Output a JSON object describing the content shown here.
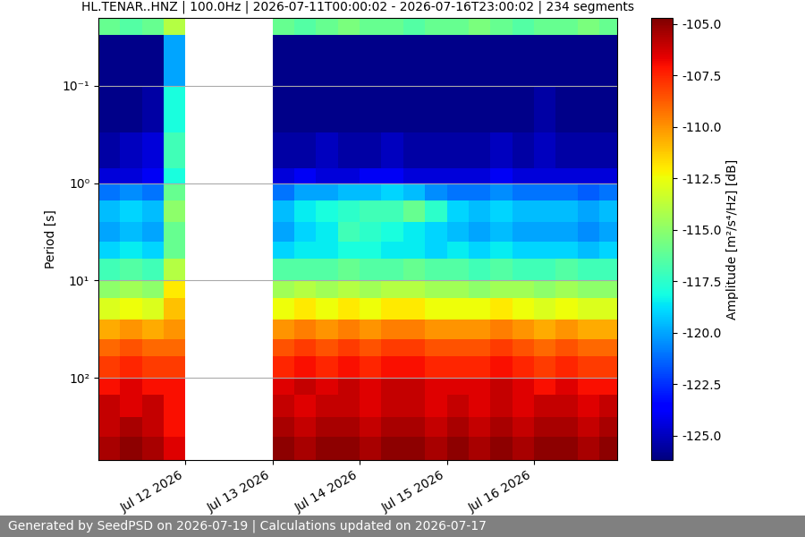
{
  "chart_data": {
    "type": "heatmap",
    "title": "HL.TENAR..HNZ | 100.0Hz | 2026-07-11T00:00:02 - 2026-07-16T23:00:02 | 234 segments",
    "y_label": "Period [s]",
    "colorbar_label": "Amplitude [m²/s⁴/Hz] [dB]",
    "footer": "Generated by SeedPSD on 2026-07-19 | Calculations updated on 2026-07-17",
    "log": "y",
    "grid": "y",
    "x": [
      "2026-07-11T00:00",
      "2026-07-11T06:00",
      "2026-07-11T12:00",
      "2026-07-11T18:00",
      "2026-07-12T00:00",
      "2026-07-12T06:00",
      "2026-07-12T12:00",
      "2026-07-12T18:00",
      "2026-07-13T00:00",
      "2026-07-13T06:00",
      "2026-07-13T12:00",
      "2026-07-13T18:00",
      "2026-07-14T00:00",
      "2026-07-14T06:00",
      "2026-07-14T12:00",
      "2026-07-14T18:00",
      "2026-07-15T00:00",
      "2026-07-15T06:00",
      "2026-07-15T12:00",
      "2026-07-15T18:00",
      "2026-07-16T00:00",
      "2026-07-16T06:00",
      "2026-07-16T12:00",
      "2026-07-16T18:00",
      "2026-07-17T00:00"
    ],
    "y": [
      0.02,
      0.03,
      0.1,
      0.3,
      0.7,
      1.0,
      1.5,
      2.5,
      4,
      6,
      10,
      15,
      25,
      40,
      60,
      100,
      150,
      250,
      400,
      700
    ],
    "xlim": [
      "2026-07-11T00:00",
      "2026-07-16T23:00"
    ],
    "xticks": [
      {
        "value": "2026-07-12T00:00",
        "label": "Jul 12 2026"
      },
      {
        "value": "2026-07-13T00:00",
        "label": "Jul 13 2026"
      },
      {
        "value": "2026-07-14T00:00",
        "label": "Jul 14 2026"
      },
      {
        "value": "2026-07-15T00:00",
        "label": "Jul 15 2026"
      },
      {
        "value": "2026-07-16T00:00",
        "label": "Jul 16 2026"
      }
    ],
    "ylim": [
      700,
      0.02
    ],
    "yticks": [
      {
        "value": 0.1,
        "label": "10⁻¹"
      },
      {
        "value": 1,
        "label": "10⁰"
      },
      {
        "value": 10,
        "label": "10¹"
      },
      {
        "value": 100,
        "label": "10²"
      }
    ],
    "clim": [
      -126.2,
      -104.7
    ],
    "cticks": [
      {
        "value": -125,
        "label": "-125.0"
      },
      -122.5,
      {
        "value": -120,
        "label": "-120.0"
      },
      -117.5,
      {
        "value": -115,
        "label": "-115.0"
      },
      -112.5,
      {
        "value": -110,
        "label": "-110.0"
      },
      -107.5,
      {
        "value": -105,
        "label": "-105.0"
      }
    ],
    "cells": [
      [
        -116,
        -116.5,
        -116,
        -114,
        null,
        null,
        null,
        null,
        -116,
        -116.5,
        -116,
        -115.5,
        -116,
        -116,
        -116.5,
        -116,
        -116,
        -115.5,
        -116,
        -116.5,
        -116,
        -116,
        -115.5,
        -116
      ],
      [
        -126,
        -126,
        -126,
        -120,
        null,
        null,
        null,
        null,
        -126,
        -126,
        -126,
        -126,
        -126,
        -126,
        -126,
        -126,
        -126,
        -126,
        -126,
        -126,
        -126,
        -126,
        -126,
        -126
      ],
      [
        -126,
        -126,
        -125.5,
        -118,
        null,
        null,
        null,
        null,
        -126,
        -126,
        -126,
        -126,
        -126,
        -126,
        -126,
        -126,
        -126,
        -126,
        -126,
        -126,
        -125.5,
        -126,
        -126,
        -126
      ],
      [
        -125.5,
        -125,
        -124.5,
        -117,
        null,
        null,
        null,
        null,
        -125.5,
        -125.5,
        -125,
        -125.5,
        -125.5,
        -125,
        -125.5,
        -125.5,
        -125.5,
        -125.5,
        -125,
        -125.5,
        -125,
        -125.5,
        -125.5,
        -125.5
      ],
      [
        -124.5,
        -124.5,
        -124,
        -118,
        null,
        null,
        null,
        null,
        -124.5,
        -124,
        -124.5,
        -124.5,
        -124,
        -124,
        -124.5,
        -124.5,
        -124.5,
        -124.5,
        -124,
        -124.5,
        -124.5,
        -124.5,
        -124.5,
        -124.5
      ],
      [
        -121,
        -120.5,
        -121,
        -116,
        null,
        null,
        null,
        null,
        -121,
        -120,
        -120,
        -119.5,
        -119.5,
        -119,
        -119.5,
        -120.5,
        -121,
        -121,
        -120.5,
        -121,
        -121,
        -121,
        -121.5,
        -121
      ],
      [
        -119.5,
        -119,
        -119.5,
        -115,
        null,
        null,
        null,
        null,
        -119.5,
        -118.5,
        -118,
        -117.5,
        -117,
        -117,
        -116,
        -117.5,
        -119,
        -119.5,
        -119,
        -119.5,
        -119.5,
        -119.5,
        -120,
        -119.5
      ],
      [
        -120,
        -119.5,
        -120,
        -116,
        null,
        null,
        null,
        null,
        -120,
        -119,
        -118.5,
        -117,
        -117.5,
        -118,
        -118.5,
        -119,
        -119.5,
        -120,
        -119.5,
        -120,
        -120,
        -120,
        -120.5,
        -120
      ],
      [
        -119,
        -118.5,
        -119,
        -116,
        null,
        null,
        null,
        null,
        -119,
        -118.5,
        -118.5,
        -118,
        -118,
        -118.5,
        -118.5,
        -119,
        -118.5,
        -119,
        -118.5,
        -119,
        -119,
        -119,
        -119.5,
        -119
      ],
      [
        -117,
        -116.5,
        -117,
        -114,
        null,
        null,
        null,
        null,
        -116.5,
        -116.5,
        -116.5,
        -116,
        -116.5,
        -116.5,
        -116,
        -116.5,
        -116.5,
        -117,
        -116.5,
        -117,
        -117,
        -116.5,
        -117,
        -117
      ],
      [
        -115,
        -114.5,
        -115,
        -112,
        null,
        null,
        null,
        null,
        -114.5,
        -114,
        -114.5,
        -114,
        -114.5,
        -114,
        -114,
        -114.5,
        -114.5,
        -115,
        -114.5,
        -114.5,
        -115,
        -114.5,
        -115,
        -115
      ],
      [
        -113,
        -112.5,
        -113,
        -111,
        null,
        null,
        null,
        null,
        -112.5,
        -112,
        -112.5,
        -112,
        -112.5,
        -112,
        -112,
        -112.5,
        -112.5,
        -112.5,
        -112,
        -112.5,
        -113,
        -112.5,
        -113,
        -113
      ],
      [
        -110.5,
        -110,
        -110.5,
        -110,
        null,
        null,
        null,
        null,
        -110,
        -109.5,
        -110,
        -109.5,
        -110,
        -109.5,
        -109.5,
        -110,
        -110,
        -110,
        -109.5,
        -110,
        -110.5,
        -110,
        -110.5,
        -110.5
      ],
      [
        -109,
        -108.5,
        -109,
        -109,
        null,
        null,
        null,
        null,
        -108.5,
        -108,
        -108.5,
        -108,
        -108.5,
        -108,
        -108,
        -108.5,
        -108.5,
        -108.5,
        -108,
        -108.5,
        -109,
        -108.5,
        -109,
        -109
      ],
      [
        -108,
        -107.5,
        -108,
        -108,
        null,
        null,
        null,
        null,
        -107.5,
        -107,
        -107.5,
        -107,
        -107.5,
        -107,
        -107,
        -107.5,
        -107.5,
        -107.5,
        -107,
        -107.5,
        -108,
        -107.5,
        -108,
        -108
      ],
      [
        -107,
        -106.5,
        -107,
        -107,
        null,
        null,
        null,
        null,
        -106.5,
        -106,
        -106.5,
        -106,
        -106.5,
        -106,
        -106,
        -106.5,
        -106.5,
        -106.5,
        -106,
        -106.5,
        -107,
        -106.5,
        -107,
        -107
      ],
      [
        -106,
        -106.5,
        -106,
        -107,
        null,
        null,
        null,
        null,
        -106,
        -106.5,
        -106,
        -106,
        -106.5,
        -106,
        -106,
        -106.5,
        -106,
        -106.5,
        -106,
        -106.5,
        -106,
        -106,
        -106.5,
        -106
      ],
      [
        -106,
        -105.5,
        -106,
        -107,
        null,
        null,
        null,
        null,
        -105.5,
        -106,
        -105.5,
        -105.5,
        -106,
        -105.5,
        -105.5,
        -106,
        -105.5,
        -106,
        -105.5,
        -106,
        -105.5,
        -105.5,
        -106,
        -105.5
      ],
      [
        -105.5,
        -105,
        -105.5,
        -106.5,
        null,
        null,
        null,
        null,
        -105,
        -105.5,
        -105,
        -105,
        -105.5,
        -105,
        -105,
        -105.5,
        -105,
        -105.5,
        -105,
        -105.5,
        -105,
        -105,
        -105.5,
        -105
      ]
    ]
  }
}
